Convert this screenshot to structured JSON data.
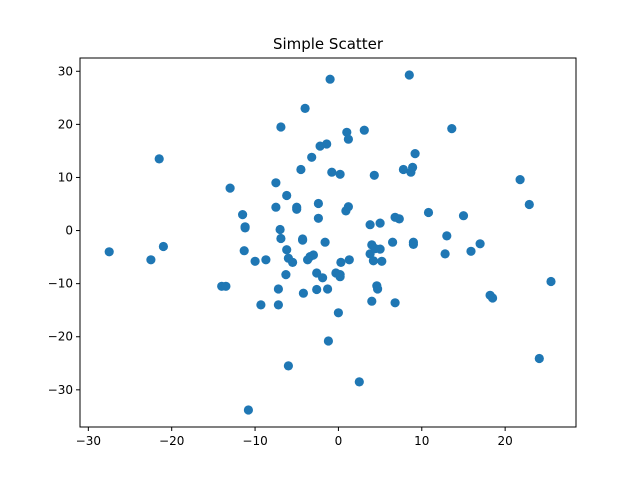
{
  "chart_data": {
    "type": "scatter",
    "title": "Simple Scatter",
    "xlabel": "",
    "ylabel": "",
    "xlim": [
      -31,
      28.5
    ],
    "ylim": [
      -37,
      32.5
    ],
    "xticks": [
      -30,
      -20,
      -10,
      0,
      10,
      20
    ],
    "yticks": [
      -30,
      -20,
      -10,
      0,
      10,
      20,
      30
    ],
    "grid": false,
    "marker_color": "#1f77b4",
    "points": [
      [
        -27.5,
        -4.0
      ],
      [
        -22.5,
        -5.5
      ],
      [
        -21.5,
        13.5
      ],
      [
        -21.0,
        -3.0
      ],
      [
        -14.0,
        -10.5
      ],
      [
        -13.5,
        -10.5
      ],
      [
        -13.0,
        8.0
      ],
      [
        -11.5,
        3.0
      ],
      [
        -11.2,
        0.7
      ],
      [
        -11.2,
        0.5
      ],
      [
        -11.3,
        -3.8
      ],
      [
        -10.8,
        -33.8
      ],
      [
        -10.0,
        -5.8
      ],
      [
        -9.3,
        -14.0
      ],
      [
        -8.7,
        -5.5
      ],
      [
        -7.5,
        9.0
      ],
      [
        -7.5,
        4.4
      ],
      [
        -7.2,
        -11.0
      ],
      [
        -7.2,
        -14.0
      ],
      [
        -7.0,
        0.2
      ],
      [
        -6.9,
        -1.5
      ],
      [
        -6.9,
        19.5
      ],
      [
        -6.3,
        -8.3
      ],
      [
        -6.2,
        -3.6
      ],
      [
        -6.2,
        6.6
      ],
      [
        -6.0,
        -5.2
      ],
      [
        -6.0,
        -25.5
      ],
      [
        -5.5,
        -6.0
      ],
      [
        -5.0,
        4.4
      ],
      [
        -5.0,
        4.0
      ],
      [
        -4.5,
        11.5
      ],
      [
        -4.3,
        -1.6
      ],
      [
        -4.3,
        -1.8
      ],
      [
        -4.2,
        -11.8
      ],
      [
        -4.0,
        23.0
      ],
      [
        -3.7,
        -5.5
      ],
      [
        -3.4,
        -4.9
      ],
      [
        -3.2,
        13.8
      ],
      [
        -3.0,
        -4.6
      ],
      [
        -2.6,
        -8.0
      ],
      [
        -2.6,
        -11.1
      ],
      [
        -2.4,
        2.3
      ],
      [
        -2.4,
        5.1
      ],
      [
        -2.2,
        15.9
      ],
      [
        -1.9,
        -8.9
      ],
      [
        -1.6,
        -2.2
      ],
      [
        -1.4,
        16.3
      ],
      [
        -1.3,
        -11.0
      ],
      [
        -1.2,
        -20.8
      ],
      [
        -1.0,
        28.5
      ],
      [
        -0.8,
        11.0
      ],
      [
        -0.3,
        -8.0
      ],
      [
        0.0,
        -15.5
      ],
      [
        0.2,
        10.6
      ],
      [
        0.2,
        -8.3
      ],
      [
        0.2,
        -8.7
      ],
      [
        0.3,
        -6.0
      ],
      [
        0.9,
        3.7
      ],
      [
        1.0,
        18.5
      ],
      [
        1.2,
        17.2
      ],
      [
        1.2,
        4.5
      ],
      [
        1.3,
        -5.5
      ],
      [
        2.5,
        -28.5
      ],
      [
        3.1,
        18.9
      ],
      [
        3.8,
        1.1
      ],
      [
        3.8,
        -4.4
      ],
      [
        4.0,
        -2.7
      ],
      [
        4.0,
        -13.3
      ],
      [
        4.2,
        -5.7
      ],
      [
        4.3,
        10.4
      ],
      [
        4.4,
        -3.4
      ],
      [
        4.6,
        -10.4
      ],
      [
        4.7,
        -11.0
      ],
      [
        5.0,
        1.4
      ],
      [
        5.0,
        -3.5
      ],
      [
        5.2,
        -5.8
      ],
      [
        6.5,
        -2.2
      ],
      [
        6.8,
        2.5
      ],
      [
        6.8,
        -13.6
      ],
      [
        7.3,
        2.2
      ],
      [
        7.8,
        11.5
      ],
      [
        8.5,
        29.3
      ],
      [
        8.7,
        11.0
      ],
      [
        8.9,
        11.9
      ],
      [
        9.0,
        -2.2
      ],
      [
        9.0,
        -2.6
      ],
      [
        9.2,
        14.5
      ],
      [
        10.8,
        3.4
      ],
      [
        12.8,
        -4.4
      ],
      [
        13.0,
        -1.0
      ],
      [
        13.6,
        19.2
      ],
      [
        15.0,
        2.8
      ],
      [
        15.9,
        -3.9
      ],
      [
        17.0,
        -2.5
      ],
      [
        18.2,
        -12.2
      ],
      [
        18.5,
        -12.7
      ],
      [
        21.8,
        9.6
      ],
      [
        22.9,
        4.9
      ],
      [
        24.1,
        -24.1
      ],
      [
        25.5,
        -9.6
      ]
    ]
  }
}
